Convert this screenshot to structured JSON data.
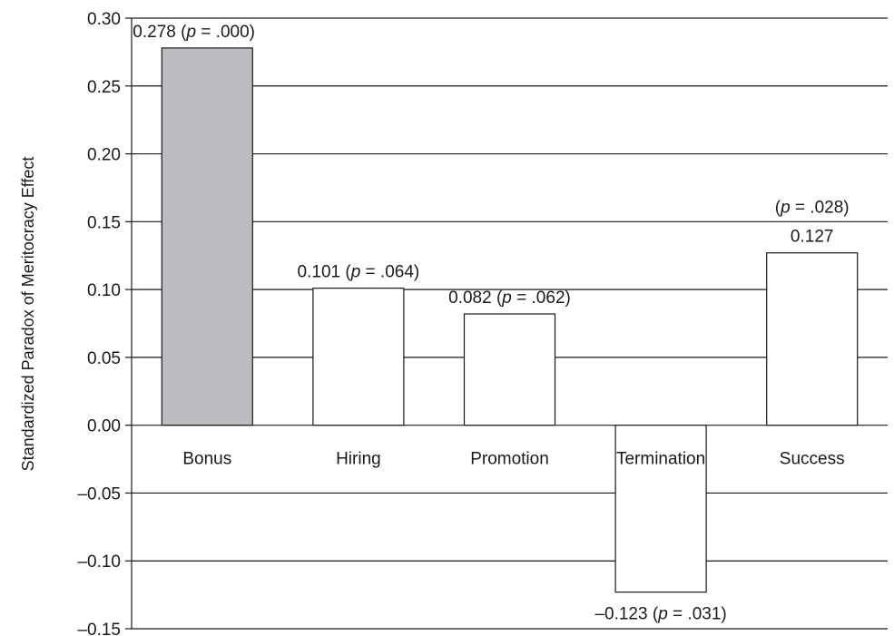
{
  "chart_data": {
    "type": "bar",
    "ylabel": "Standardized Paradox of Meritocracy Effect",
    "xlabel": "",
    "title": "",
    "ylim": [
      -0.15,
      0.3
    ],
    "yticks": [
      0.3,
      0.25,
      0.2,
      0.15,
      0.1,
      0.05,
      0.0,
      -0.05,
      -0.1,
      -0.15
    ],
    "ytick_labels": [
      "0.30",
      "0.25",
      "0.20",
      "0.15",
      "0.10",
      "0.05",
      "0.00",
      "–0.05",
      "–0.10",
      "–0.15"
    ],
    "grid": true,
    "categories": [
      "Bonus",
      "Hiring",
      "Promotion",
      "Termination",
      "Success"
    ],
    "values": [
      0.278,
      0.101,
      0.082,
      -0.123,
      0.127
    ],
    "value_labels": [
      "0.278",
      "0.101",
      "0.082",
      "–0.123",
      "0.127"
    ],
    "p_values": [
      ".000",
      ".064",
      ".062",
      ".031",
      ".028"
    ],
    "p_symbol": "p",
    "colors": {
      "highlight_bar": "#bcbdc0",
      "bar": "#ffffff",
      "edge": "#1a1a1a",
      "grid": "#1a1a1a"
    },
    "highlight_index": 0
  }
}
